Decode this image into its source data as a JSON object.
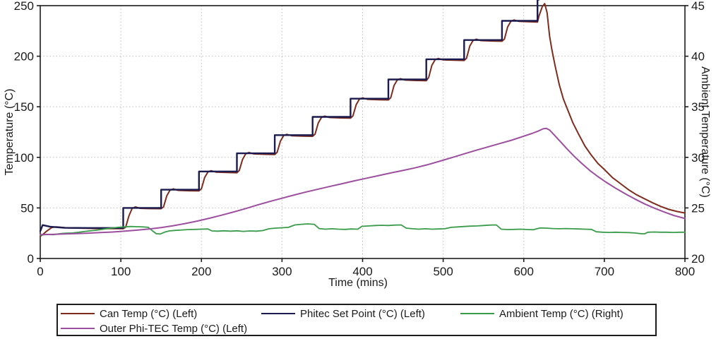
{
  "chart_data": {
    "type": "line",
    "title": "",
    "xlabel": "Time (mins)",
    "ylabel_left": "Temperature (°C)",
    "ylabel_right": "Ambient Temperature (°C)",
    "xlim": [
      0,
      800
    ],
    "xticks": [
      0,
      100,
      200,
      300,
      400,
      500,
      600,
      700,
      800
    ],
    "ylim_left": [
      0,
      250
    ],
    "yticks_left": [
      0,
      50,
      100,
      150,
      200,
      250
    ],
    "ylim_right": [
      20,
      45
    ],
    "yticks_right": [
      20,
      25,
      30,
      35,
      40,
      45
    ],
    "grid": true,
    "grid_style": "dotted",
    "grid_color": "#bdbdbd",
    "axis_color": "#1c1c1c",
    "legend_position": "bottom",
    "series": [
      {
        "id": "can-temp",
        "name": "Can Temp (°C) (Left)",
        "axis": "left",
        "color": "#7e2c1e",
        "width": 2,
        "points": [
          [
            0,
            22
          ],
          [
            3,
            23.5
          ],
          [
            8,
            27
          ],
          [
            14,
            30.5
          ],
          [
            20,
            31.3
          ],
          [
            35,
            30.2
          ],
          [
            70,
            29.6
          ],
          [
            103,
            29.5
          ],
          [
            106,
            31
          ],
          [
            110,
            42
          ],
          [
            114,
            49.5
          ],
          [
            118,
            51
          ],
          [
            124,
            49.6
          ],
          [
            135,
            49.3
          ],
          [
            150,
            49.2
          ],
          [
            153,
            51
          ],
          [
            157,
            62
          ],
          [
            161,
            67.5
          ],
          [
            165,
            68.8
          ],
          [
            171,
            67.4
          ],
          [
            185,
            67
          ],
          [
            197,
            66.8
          ],
          [
            200,
            69
          ],
          [
            204,
            80
          ],
          [
            208,
            85.5
          ],
          [
            212,
            86.8
          ],
          [
            218,
            85.4
          ],
          [
            232,
            85
          ],
          [
            244,
            84.8
          ],
          [
            247,
            87
          ],
          [
            251,
            98
          ],
          [
            255,
            103.5
          ],
          [
            259,
            104.8
          ],
          [
            265,
            103.4
          ],
          [
            280,
            103
          ],
          [
            291,
            102.8
          ],
          [
            294,
            105
          ],
          [
            298,
            116
          ],
          [
            302,
            121.5
          ],
          [
            306,
            122.8
          ],
          [
            312,
            121.4
          ],
          [
            326,
            121
          ],
          [
            338,
            120.8
          ],
          [
            341,
            123
          ],
          [
            345,
            134
          ],
          [
            349,
            139.5
          ],
          [
            353,
            140.8
          ],
          [
            359,
            139.4
          ],
          [
            373,
            139
          ],
          [
            385,
            138.8
          ],
          [
            388,
            141
          ],
          [
            392,
            152
          ],
          [
            396,
            157.5
          ],
          [
            400,
            158.8
          ],
          [
            406,
            157.4
          ],
          [
            420,
            157
          ],
          [
            432,
            156.8
          ],
          [
            435,
            159
          ],
          [
            439,
            171
          ],
          [
            443,
            176.5
          ],
          [
            447,
            177.8
          ],
          [
            453,
            176.4
          ],
          [
            467,
            176
          ],
          [
            479,
            175.8
          ],
          [
            482,
            179
          ],
          [
            486,
            191
          ],
          [
            490,
            196.5
          ],
          [
            494,
            197.8
          ],
          [
            500,
            196.4
          ],
          [
            514,
            196
          ],
          [
            526,
            195.8
          ],
          [
            529,
            198
          ],
          [
            533,
            210
          ],
          [
            537,
            215.5
          ],
          [
            541,
            216.8
          ],
          [
            547,
            215.4
          ],
          [
            561,
            215
          ],
          [
            573,
            214.8
          ],
          [
            576,
            217
          ],
          [
            580,
            229
          ],
          [
            584,
            234.5
          ],
          [
            588,
            235.8
          ],
          [
            594,
            234.4
          ],
          [
            608,
            234
          ],
          [
            617,
            233.8
          ],
          [
            619,
            240
          ],
          [
            623,
            249
          ],
          [
            626,
            252
          ],
          [
            629,
            243
          ],
          [
            632,
            220
          ],
          [
            635,
            206
          ],
          [
            639,
            190
          ],
          [
            644,
            172
          ],
          [
            649,
            158
          ],
          [
            655,
            146
          ],
          [
            661,
            134
          ],
          [
            668,
            123
          ],
          [
            676,
            111
          ],
          [
            684,
            102
          ],
          [
            692,
            94
          ],
          [
            700,
            88
          ],
          [
            710,
            80
          ],
          [
            720,
            74
          ],
          [
            730,
            68
          ],
          [
            740,
            63
          ],
          [
            750,
            59
          ],
          [
            760,
            55
          ],
          [
            770,
            51.5
          ],
          [
            780,
            48.5
          ],
          [
            790,
            46.5
          ],
          [
            800,
            45
          ]
        ]
      },
      {
        "id": "phitec-set-point",
        "name": "Phitec Set Point (°C) (Left)",
        "axis": "left",
        "color": "#1b1b4f",
        "width": 2.4,
        "points": [
          [
            0,
            27
          ],
          [
            3,
            33
          ],
          [
            12,
            31.5
          ],
          [
            30,
            30.3
          ],
          [
            60,
            30.2
          ],
          [
            103,
            30.2
          ],
          [
            103,
            50
          ],
          [
            150,
            50
          ],
          [
            150,
            68
          ],
          [
            197,
            68
          ],
          [
            197,
            86
          ],
          [
            244,
            86
          ],
          [
            244,
            104
          ],
          [
            291,
            104
          ],
          [
            291,
            122
          ],
          [
            338,
            122
          ],
          [
            338,
            140
          ],
          [
            385,
            140
          ],
          [
            385,
            158
          ],
          [
            432,
            158
          ],
          [
            432,
            177
          ],
          [
            479,
            177
          ],
          [
            479,
            197
          ],
          [
            526,
            197
          ],
          [
            526,
            216
          ],
          [
            573,
            216
          ],
          [
            573,
            235
          ],
          [
            617,
            235
          ],
          [
            617,
            256
          ],
          [
            619,
            256
          ]
        ]
      },
      {
        "id": "ambient-temp",
        "name": "Ambient Temp (°C) (Right)",
        "axis": "right",
        "color": "#3a9c4a",
        "width": 1.8,
        "points": [
          [
            0,
            22.3
          ],
          [
            8,
            22.38
          ],
          [
            16,
            22.35
          ],
          [
            24,
            22.45
          ],
          [
            32,
            22.5
          ],
          [
            40,
            22.52
          ],
          [
            48,
            22.6
          ],
          [
            56,
            22.68
          ],
          [
            64,
            22.75
          ],
          [
            72,
            22.82
          ],
          [
            80,
            22.92
          ],
          [
            88,
            23.0
          ],
          [
            96,
            23.08
          ],
          [
            104,
            23.12
          ],
          [
            112,
            23.16
          ],
          [
            120,
            23.14
          ],
          [
            128,
            23.12
          ],
          [
            134,
            23.08
          ],
          [
            139,
            22.75
          ],
          [
            144,
            22.45
          ],
          [
            149,
            22.42
          ],
          [
            154,
            22.6
          ],
          [
            160,
            22.72
          ],
          [
            168,
            22.78
          ],
          [
            176,
            22.82
          ],
          [
            184,
            22.86
          ],
          [
            192,
            22.88
          ],
          [
            200,
            22.9
          ],
          [
            208,
            22.92
          ],
          [
            213,
            22.72
          ],
          [
            220,
            22.7
          ],
          [
            228,
            22.74
          ],
          [
            236,
            22.7
          ],
          [
            244,
            22.74
          ],
          [
            252,
            22.68
          ],
          [
            260,
            22.72
          ],
          [
            268,
            22.7
          ],
          [
            276,
            22.76
          ],
          [
            284,
            22.94
          ],
          [
            292,
            23.0
          ],
          [
            300,
            23.04
          ],
          [
            308,
            23.08
          ],
          [
            316,
            23.32
          ],
          [
            324,
            23.38
          ],
          [
            332,
            23.42
          ],
          [
            340,
            23.38
          ],
          [
            346,
            22.96
          ],
          [
            354,
            22.9
          ],
          [
            362,
            22.94
          ],
          [
            370,
            22.9
          ],
          [
            378,
            22.88
          ],
          [
            386,
            22.92
          ],
          [
            394,
            22.9
          ],
          [
            399,
            23.18
          ],
          [
            408,
            23.22
          ],
          [
            416,
            23.26
          ],
          [
            424,
            23.28
          ],
          [
            432,
            23.26
          ],
          [
            440,
            23.3
          ],
          [
            448,
            23.32
          ],
          [
            454,
            23.0
          ],
          [
            462,
            22.94
          ],
          [
            470,
            22.9
          ],
          [
            478,
            22.94
          ],
          [
            486,
            22.9
          ],
          [
            494,
            22.92
          ],
          [
            502,
            22.94
          ],
          [
            510,
            23.08
          ],
          [
            518,
            23.12
          ],
          [
            526,
            23.16
          ],
          [
            534,
            23.2
          ],
          [
            542,
            23.22
          ],
          [
            550,
            23.26
          ],
          [
            558,
            23.3
          ],
          [
            566,
            23.32
          ],
          [
            572,
            22.9
          ],
          [
            580,
            22.86
          ],
          [
            588,
            22.88
          ],
          [
            596,
            22.9
          ],
          [
            604,
            22.86
          ],
          [
            612,
            22.84
          ],
          [
            620,
            23.02
          ],
          [
            628,
            23.0
          ],
          [
            636,
            22.96
          ],
          [
            644,
            22.94
          ],
          [
            652,
            22.96
          ],
          [
            660,
            22.94
          ],
          [
            668,
            22.92
          ],
          [
            676,
            22.9
          ],
          [
            684,
            22.88
          ],
          [
            690,
            22.64
          ],
          [
            698,
            22.6
          ],
          [
            706,
            22.58
          ],
          [
            714,
            22.6
          ],
          [
            722,
            22.58
          ],
          [
            730,
            22.56
          ],
          [
            738,
            22.52
          ],
          [
            745,
            22.46
          ],
          [
            750,
            22.44
          ],
          [
            754,
            22.6
          ],
          [
            762,
            22.62
          ],
          [
            770,
            22.6
          ],
          [
            778,
            22.6
          ],
          [
            786,
            22.58
          ],
          [
            794,
            22.6
          ],
          [
            800,
            22.6
          ]
        ]
      },
      {
        "id": "outer-phi-tec-temp",
        "name": "Outer Phi-TEC Temp (°C) (Left)",
        "axis": "left",
        "color": "#9c4f9e",
        "width": 2,
        "points": [
          [
            0,
            23.5
          ],
          [
            15,
            23.8
          ],
          [
            30,
            24.2
          ],
          [
            45,
            24.6
          ],
          [
            60,
            25.1
          ],
          [
            75,
            25.6
          ],
          [
            90,
            26.2
          ],
          [
            105,
            27
          ],
          [
            120,
            28
          ],
          [
            135,
            29.2
          ],
          [
            150,
            30.6
          ],
          [
            165,
            32.4
          ],
          [
            180,
            34.6
          ],
          [
            195,
            37
          ],
          [
            210,
            39.8
          ],
          [
            225,
            42.8
          ],
          [
            240,
            46
          ],
          [
            255,
            49.4
          ],
          [
            270,
            53
          ],
          [
            285,
            56.4
          ],
          [
            300,
            59.6
          ],
          [
            315,
            62.8
          ],
          [
            330,
            65.8
          ],
          [
            345,
            68.6
          ],
          [
            360,
            71.4
          ],
          [
            375,
            74
          ],
          [
            390,
            76.8
          ],
          [
            405,
            79.4
          ],
          [
            420,
            82
          ],
          [
            435,
            84.6
          ],
          [
            450,
            87
          ],
          [
            465,
            89.6
          ],
          [
            480,
            92.6
          ],
          [
            495,
            96
          ],
          [
            510,
            99.6
          ],
          [
            525,
            103.2
          ],
          [
            540,
            106.8
          ],
          [
            555,
            110.2
          ],
          [
            570,
            113.6
          ],
          [
            585,
            117
          ],
          [
            598,
            120.4
          ],
          [
            610,
            123.6
          ],
          [
            618,
            126
          ],
          [
            624,
            128.2
          ],
          [
            628,
            128.6
          ],
          [
            632,
            127
          ],
          [
            638,
            122
          ],
          [
            645,
            116
          ],
          [
            653,
            109
          ],
          [
            662,
            101.5
          ],
          [
            672,
            94
          ],
          [
            682,
            87
          ],
          [
            692,
            81
          ],
          [
            702,
            75.5
          ],
          [
            714,
            69.5
          ],
          [
            726,
            64
          ],
          [
            738,
            58.8
          ],
          [
            750,
            54
          ],
          [
            762,
            49.8
          ],
          [
            774,
            46
          ],
          [
            786,
            42.6
          ],
          [
            800,
            39.5
          ]
        ]
      }
    ]
  }
}
